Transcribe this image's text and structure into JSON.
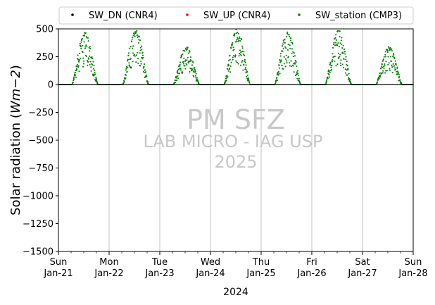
{
  "chart_data": {
    "type": "scatter",
    "title": "",
    "xlabel": "2024",
    "ylabel_main": "Solar radiation (",
    "ylabel_unit": "Wm",
    "ylabel_exp": "−2",
    "ylabel_close": ")",
    "ylim": [
      -1500,
      500
    ],
    "y_ticks": [
      500,
      250,
      0,
      -250,
      -500,
      -750,
      -1000,
      -1250,
      -1500
    ],
    "y_tick_labels": [
      "500",
      "250",
      "0",
      "−250",
      "−500",
      "−750",
      "−1000",
      "−1250",
      "−1500"
    ],
    "x_range": [
      "2024-01-21",
      "2024-01-28"
    ],
    "x_ticks": [
      {
        "day": "Sun",
        "date": "Jan-21"
      },
      {
        "day": "Mon",
        "date": "Jan-22"
      },
      {
        "day": "Tue",
        "date": "Jan-23"
      },
      {
        "day": "Wed",
        "date": "Jan-24"
      },
      {
        "day": "Thu",
        "date": "Jan-25"
      },
      {
        "day": "Fri",
        "date": "Jan-26"
      },
      {
        "day": "Sat",
        "date": "Jan-27"
      },
      {
        "day": "Sun",
        "date": "Jan-28"
      }
    ],
    "grid": "vertical",
    "legend_position": "top",
    "legend": [
      {
        "name": "SW_DN (CNR4)",
        "color": "#000000"
      },
      {
        "name": "SW_UP (CNR4)",
        "color": "#ff0000"
      },
      {
        "name": "SW_station (CMP3)",
        "color": "#008000"
      }
    ],
    "series": [
      {
        "name": "SW_DN (CNR4)",
        "color": "#000000",
        "values_description_nighttime": 0
      },
      {
        "name": "SW_UP (CNR4)",
        "color": "#ff0000"
      },
      {
        "name": "SW_station (CMP3)",
        "color": "#008000",
        "daily_peak_wm2": [
          {
            "date": "2024-01-21",
            "peak": 470
          },
          {
            "date": "2024-01-22",
            "peak": 490
          },
          {
            "date": "2024-01-23",
            "peak": 340
          },
          {
            "date": "2024-01-24",
            "peak": 500
          },
          {
            "date": "2024-01-25",
            "peak": 480
          },
          {
            "date": "2024-01-26",
            "peak": 490
          },
          {
            "date": "2024-01-27",
            "peak": 340
          }
        ]
      }
    ],
    "watermark": [
      "PM SFZ",
      "LAB MICRO - IAG USP",
      "2025"
    ]
  }
}
